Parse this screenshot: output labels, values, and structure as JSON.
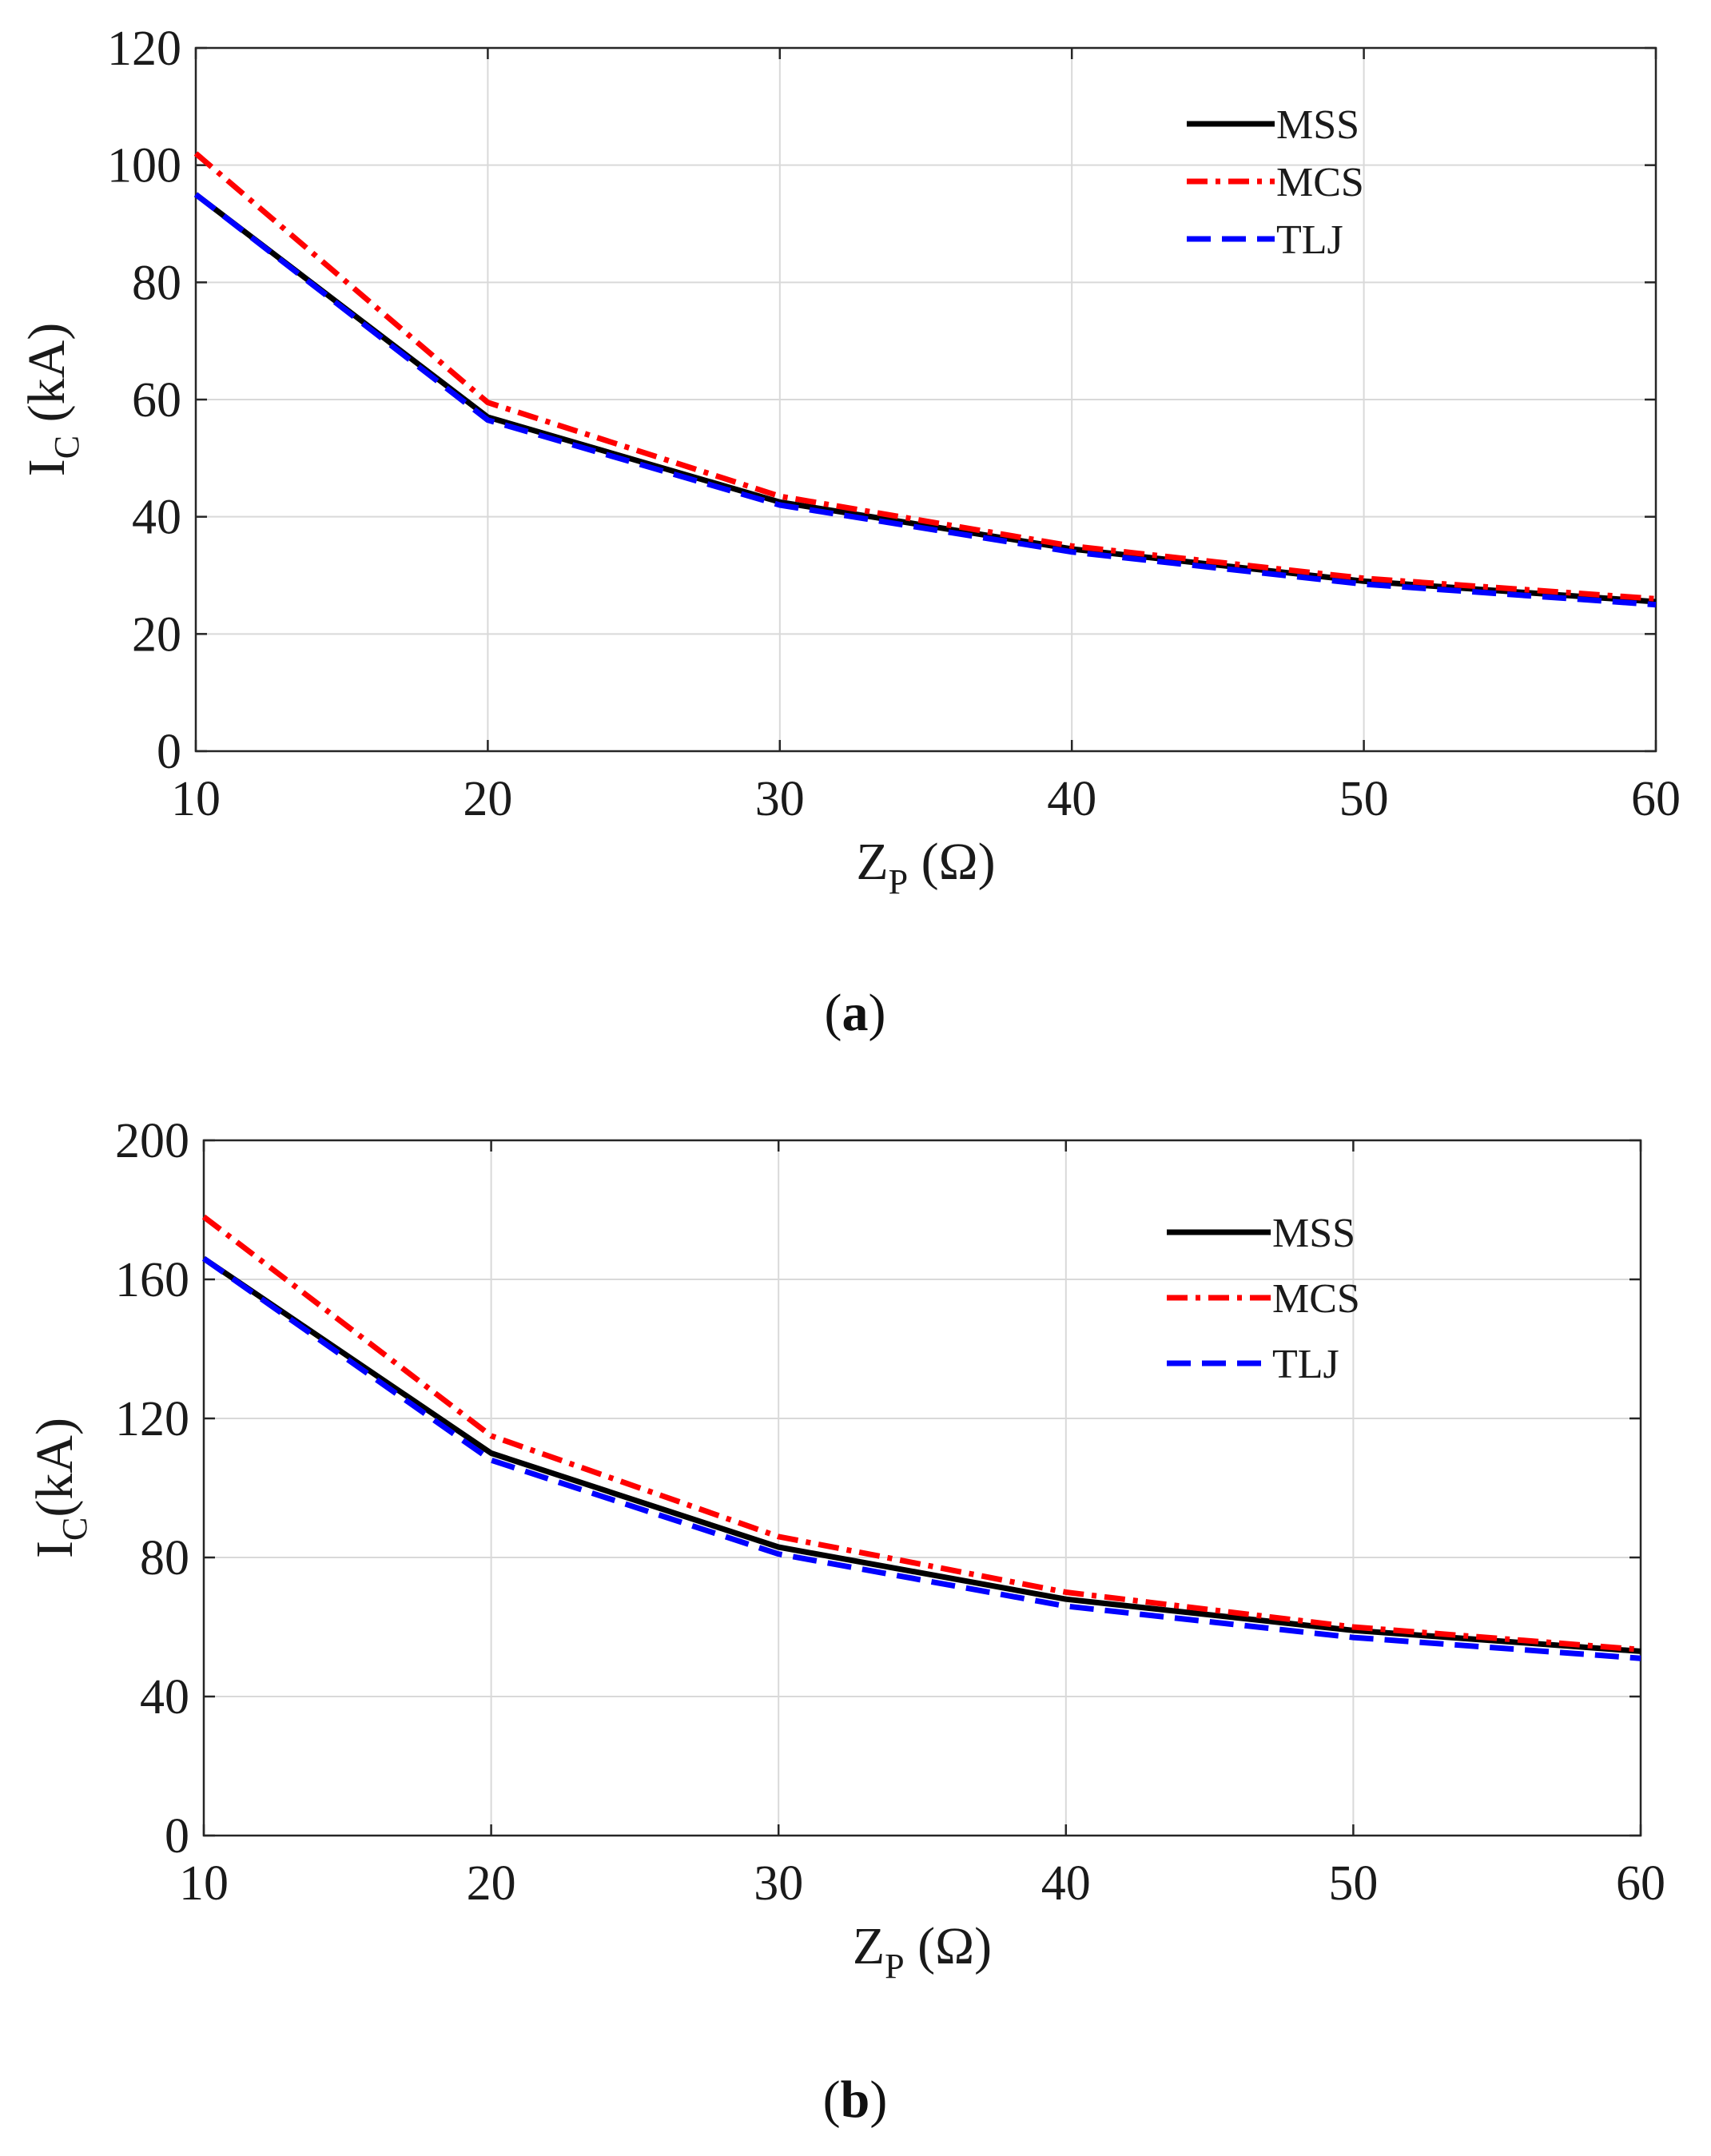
{
  "chart_data": [
    {
      "id": "a",
      "type": "line",
      "caption": "a",
      "x": [
        10,
        20,
        30,
        40,
        50,
        60
      ],
      "xlim": [
        10,
        60
      ],
      "xticks": [
        10,
        20,
        30,
        40,
        50,
        60
      ],
      "ylim": [
        0,
        120
      ],
      "yticks": [
        0,
        20,
        40,
        60,
        80,
        100,
        120
      ],
      "xlabel": {
        "main": "Z",
        "sub": "P",
        "unit": "(Ω)"
      },
      "ylabel": {
        "main": "I",
        "sub": "C",
        "unit": "(kA)"
      },
      "grid": true,
      "legend_position": "top-right",
      "series": [
        {
          "name": "MSS",
          "color": "#000000",
          "dash": "solid",
          "values": [
            95,
            57,
            42.5,
            34.5,
            29,
            25.5
          ]
        },
        {
          "name": "MCS",
          "color": "#ff0000",
          "dash": "dashdot",
          "values": [
            102,
            59.5,
            43.5,
            35,
            29.5,
            26
          ]
        },
        {
          "name": "TLJ",
          "color": "#0000ff",
          "dash": "dashed",
          "values": [
            95,
            56.5,
            42,
            34,
            28.5,
            25
          ]
        }
      ]
    },
    {
      "id": "b",
      "type": "line",
      "caption": "b",
      "x": [
        10,
        20,
        30,
        40,
        50,
        60
      ],
      "xlim": [
        10,
        60
      ],
      "xticks": [
        10,
        20,
        30,
        40,
        50,
        60
      ],
      "ylim": [
        0,
        200
      ],
      "yticks": [
        0,
        40,
        80,
        120,
        160,
        200
      ],
      "xlabel": {
        "main": "Z",
        "sub": "P",
        "unit": "(Ω)"
      },
      "ylabel": {
        "main": "I",
        "sub": "C",
        "unit": "(kA)"
      },
      "grid": true,
      "legend_position": "top-right",
      "series": [
        {
          "name": "MSS",
          "color": "#000000",
          "dash": "solid",
          "values": [
            166,
            110,
            83,
            68,
            59,
            53
          ]
        },
        {
          "name": "MCS",
          "color": "#ff0000",
          "dash": "dashdot",
          "values": [
            178,
            115,
            86,
            70,
            60,
            53.5
          ]
        },
        {
          "name": "TLJ",
          "color": "#0000ff",
          "dash": "dashed",
          "values": [
            166,
            108,
            81,
            66,
            57,
            51
          ]
        }
      ]
    }
  ]
}
